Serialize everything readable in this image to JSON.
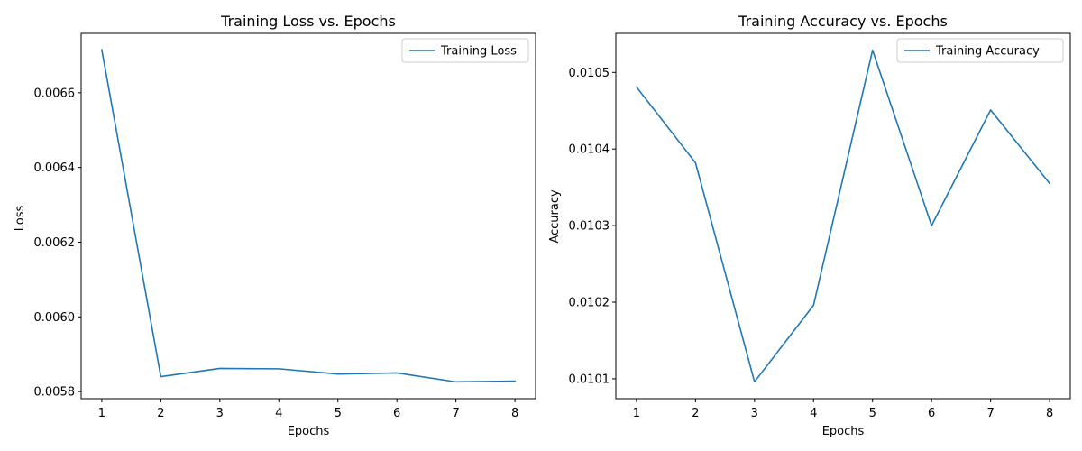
{
  "chart_data": [
    {
      "type": "line",
      "title": "Training Loss vs. Epochs",
      "xlabel": "Epochs",
      "ylabel": "Loss",
      "x": [
        1,
        2,
        3,
        4,
        5,
        6,
        7,
        8
      ],
      "series": [
        {
          "name": "Training Loss",
          "color": "#1f77b4",
          "values": [
            0.006715,
            0.00584,
            0.005862,
            0.005861,
            0.005847,
            0.00585,
            0.005826,
            0.005828
          ]
        }
      ],
      "xlim": [
        0.65,
        8.35
      ],
      "ylim": [
        0.005781,
        0.006759
      ],
      "xticks": [
        1,
        2,
        3,
        4,
        5,
        6,
        7,
        8
      ],
      "yticks": [
        0.0058,
        0.006,
        0.0062,
        0.0064,
        0.0066
      ],
      "ytick_labels": [
        "0.0058",
        "0.0060",
        "0.0062",
        "0.0064",
        "0.0066"
      ],
      "legend": "top-right",
      "grid": false
    },
    {
      "type": "line",
      "title": "Training Accuracy vs. Epochs",
      "xlabel": "Epochs",
      "ylabel": "Accuracy",
      "x": [
        1,
        2,
        3,
        4,
        5,
        6,
        7,
        8
      ],
      "series": [
        {
          "name": "Training Accuracy",
          "color": "#1f77b4",
          "values": [
            0.010481,
            0.010382,
            0.010096,
            0.010196,
            0.010529,
            0.0103,
            0.010451,
            0.010355
          ]
        }
      ],
      "xlim": [
        0.65,
        8.35
      ],
      "ylim": [
        0.010074,
        0.010551
      ],
      "xticks": [
        1,
        2,
        3,
        4,
        5,
        6,
        7,
        8
      ],
      "yticks": [
        0.0101,
        0.0102,
        0.0103,
        0.0104,
        0.0105
      ],
      "ytick_labels": [
        "0.0101",
        "0.0102",
        "0.0103",
        "0.0104",
        "0.0105"
      ],
      "legend": "top-right",
      "grid": false
    }
  ]
}
